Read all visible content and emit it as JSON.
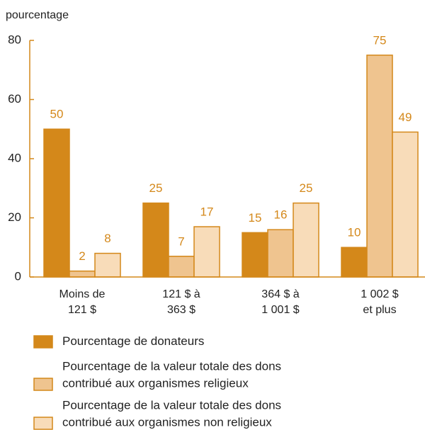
{
  "chart_data": {
    "type": "bar",
    "y_axis_label": "pourcentage",
    "categories": [
      [
        "Moins de",
        "121 $"
      ],
      [
        "121 $ à",
        "363 $"
      ],
      [
        "364 $ à",
        "1 001 $"
      ],
      [
        "1 002 $",
        "et plus"
      ]
    ],
    "series": [
      {
        "name": [
          "Pourcentage de donateurs"
        ],
        "color": "#d4881a",
        "values": [
          50,
          25,
          15,
          10
        ]
      },
      {
        "name": [
          "Pourcentage de la valeur totale des dons",
          "contribué aux organismes religieux"
        ],
        "color": "#efc48f",
        "values": [
          2,
          7,
          16,
          75
        ]
      },
      {
        "name": [
          "Pourcentage de la valeur totale des dons",
          "contribué aux organismes non religieux"
        ],
        "color": "#f8dcb9",
        "values": [
          8,
          17,
          25,
          49
        ]
      }
    ],
    "border_color": "#d4881a",
    "ylim": [
      0,
      80
    ],
    "yticks": [
      0,
      20,
      40,
      60,
      80
    ],
    "grid": false
  }
}
